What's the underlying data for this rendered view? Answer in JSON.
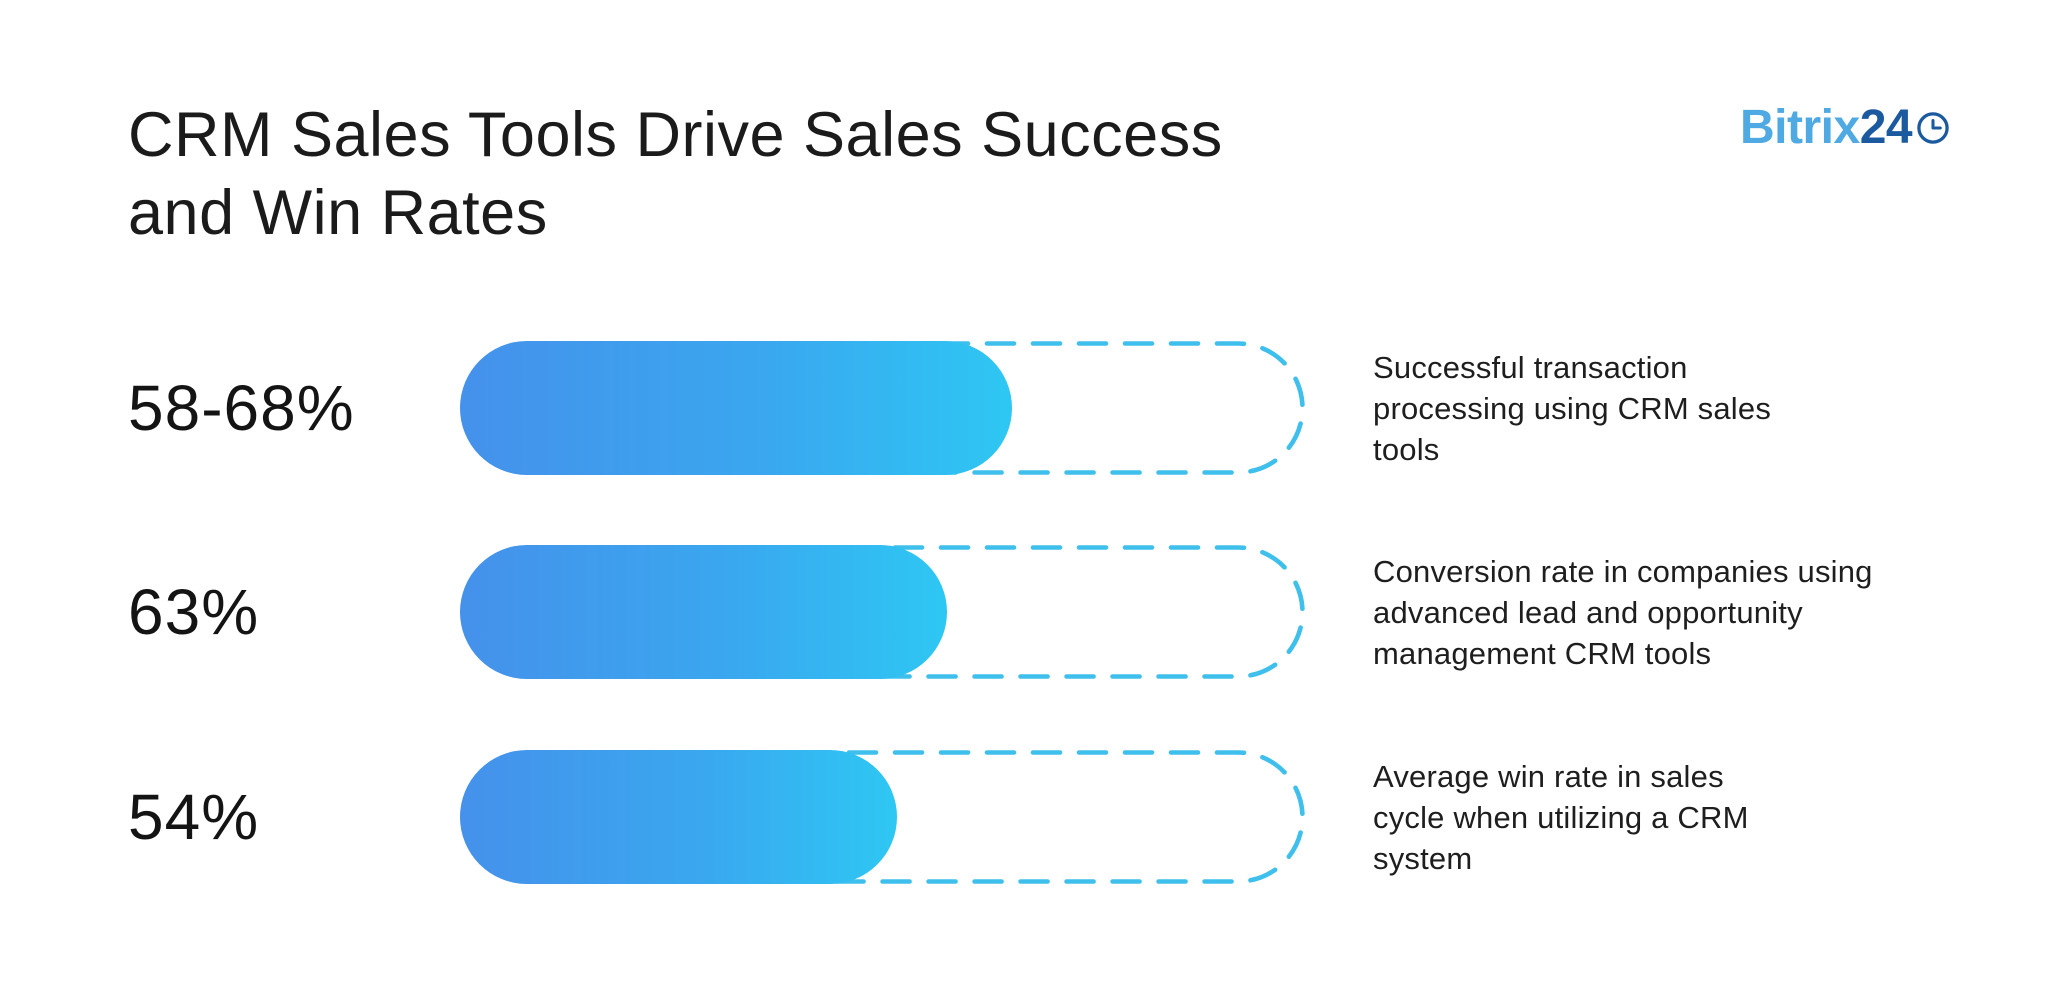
{
  "header": {
    "title_lines": [
      "CRM Sales Tools Drive Sales Success",
      "and Win Rates"
    ]
  },
  "logo": {
    "brand_light": "Bitrix",
    "brand_dark": "24",
    "clock_icon": "clock-icon",
    "color_light": "#4FA9E2",
    "color_dark": "#1B5A9F"
  },
  "colors": {
    "bar_gradient_start": "#4591EB",
    "bar_gradient_end": "#2EC7F3",
    "bar_outline_dash": "#3FBFEB",
    "title_text": "#1b1b1b",
    "body_text": "#1e1e1e",
    "background": "#ffffff"
  },
  "bars": [
    {
      "value_label": "58-68%",
      "fill_percent": 65.3,
      "description": "Successful transaction processing using CRM sales tools",
      "description_lines": [
        "Successful transaction",
        "processing using CRM sales",
        "tools"
      ]
    },
    {
      "value_label": "63%",
      "fill_percent": 57.6,
      "description": "Conversion rate in companies using advanced lead and opportunity management CRM tools",
      "description_lines": [
        "Conversion rate in companies using",
        "advanced lead and opportunity",
        "management CRM tools"
      ]
    },
    {
      "value_label": "54%",
      "fill_percent": 51.7,
      "description": "Average win rate in sales cycle when utilizing a CRM system",
      "description_lines": [
        "Average win rate in sales",
        "cycle when utilizing a CRM",
        "system"
      ]
    }
  ],
  "chart_data": {
    "type": "bar",
    "orientation": "horizontal",
    "title": "CRM Sales Tools Drive Sales Success and Win Rates",
    "categories": [
      "Successful transaction processing using CRM sales tools",
      "Conversion rate in companies using advanced lead and opportunity management CRM tools",
      "Average win rate in sales cycle when utilizing a CRM system"
    ],
    "value_labels": [
      "58-68%",
      "63%",
      "54%"
    ],
    "values": [
      68,
      63,
      54
    ],
    "bar_fill_fraction_of_track": [
      0.653,
      0.576,
      0.517
    ],
    "unit": "%",
    "xlim": [
      0,
      100
    ],
    "grid": false,
    "legend": null,
    "bar_style": {
      "fill": "gradient blue to cyan",
      "track": "dashed light-blue pill outline"
    },
    "brand": "Bitrix24"
  }
}
